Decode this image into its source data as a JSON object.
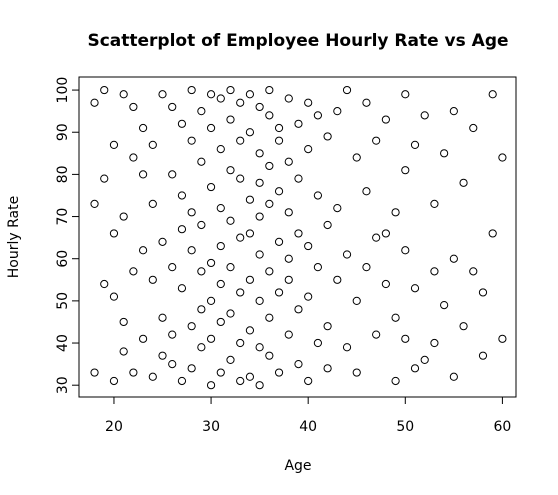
{
  "chart_data": {
    "type": "scatter",
    "title": "Scatterplot of Employee Hourly Rate vs Age",
    "x_label": "Age",
    "y_label": "Hourly Rate",
    "xlim": [
      16.4,
      61.4
    ],
    "ylim": [
      27.2,
      103.1
    ],
    "xticks": [
      20,
      30,
      40,
      50,
      60
    ],
    "yticks": [
      30,
      40,
      50,
      60,
      70,
      80,
      90,
      100
    ],
    "color": "#000000",
    "x": [
      18,
      18,
      18,
      19,
      19,
      19,
      20,
      20,
      20,
      20,
      21,
      21,
      21,
      21,
      22,
      22,
      22,
      22,
      23,
      23,
      23,
      23,
      24,
      24,
      24,
      24,
      25,
      25,
      25,
      25,
      26,
      26,
      26,
      26,
      26,
      27,
      27,
      27,
      27,
      27,
      28,
      28,
      28,
      28,
      28,
      28,
      29,
      29,
      29,
      29,
      29,
      29,
      30,
      30,
      30,
      30,
      30,
      30,
      30,
      31,
      31,
      31,
      31,
      31,
      31,
      31,
      32,
      32,
      32,
      32,
      32,
      32,
      32,
      33,
      33,
      33,
      33,
      33,
      33,
      33,
      34,
      34,
      34,
      34,
      34,
      34,
      34,
      35,
      35,
      35,
      35,
      35,
      35,
      35,
      35,
      36,
      36,
      36,
      36,
      36,
      36,
      36,
      37,
      37,
      37,
      37,
      37,
      37,
      38,
      38,
      38,
      38,
      38,
      38,
      39,
      39,
      39,
      39,
      39,
      40,
      40,
      40,
      40,
      40,
      41,
      41,
      41,
      41,
      42,
      42,
      42,
      42,
      43,
      43,
      43,
      44,
      44,
      44,
      45,
      45,
      45,
      46,
      46,
      46,
      47,
      47,
      47,
      48,
      48,
      49,
      49,
      49,
      50,
      50,
      50,
      50,
      51,
      51,
      52,
      52,
      53,
      53,
      53,
      54,
      54,
      55,
      55,
      56,
      56,
      57,
      58,
      58,
      59,
      59,
      60,
      60,
      55,
      57,
      51,
      48
    ],
    "y": [
      97,
      73,
      33,
      79,
      100,
      54,
      31,
      66,
      87,
      51,
      99,
      45,
      70,
      38,
      84,
      57,
      96,
      33,
      62,
      80,
      91,
      41,
      55,
      32,
      87,
      73,
      64,
      99,
      46,
      37,
      96,
      58,
      80,
      42,
      35,
      92,
      67,
      53,
      31,
      75,
      100,
      88,
      71,
      62,
      44,
      34,
      95,
      83,
      57,
      48,
      39,
      68,
      99,
      91,
      77,
      59,
      50,
      41,
      30,
      98,
      86,
      72,
      63,
      54,
      45,
      33,
      100,
      93,
      81,
      69,
      58,
      47,
      36,
      97,
      88,
      79,
      65,
      52,
      40,
      31,
      99,
      90,
      74,
      66,
      55,
      43,
      32,
      96,
      85,
      78,
      70,
      61,
      50,
      39,
      30,
      94,
      82,
      73,
      57,
      46,
      37,
      100,
      91,
      76,
      64,
      52,
      33,
      88,
      60,
      42,
      98,
      83,
      71,
      55,
      35,
      92,
      79,
      66,
      48,
      31,
      97,
      86,
      63,
      51,
      40,
      94,
      75,
      58,
      34,
      89,
      68,
      44,
      95,
      72,
      55,
      100,
      61,
      39,
      84,
      50,
      33,
      97,
      76,
      58,
      88,
      65,
      42,
      93,
      54,
      71,
      46,
      31,
      99,
      81,
      62,
      41,
      87,
      53,
      94,
      36,
      73,
      57,
      40,
      85,
      49,
      95,
      60,
      78,
      44,
      91,
      52,
      37,
      66,
      99,
      84,
      41,
      32,
      57,
      34,
      66
    ]
  }
}
